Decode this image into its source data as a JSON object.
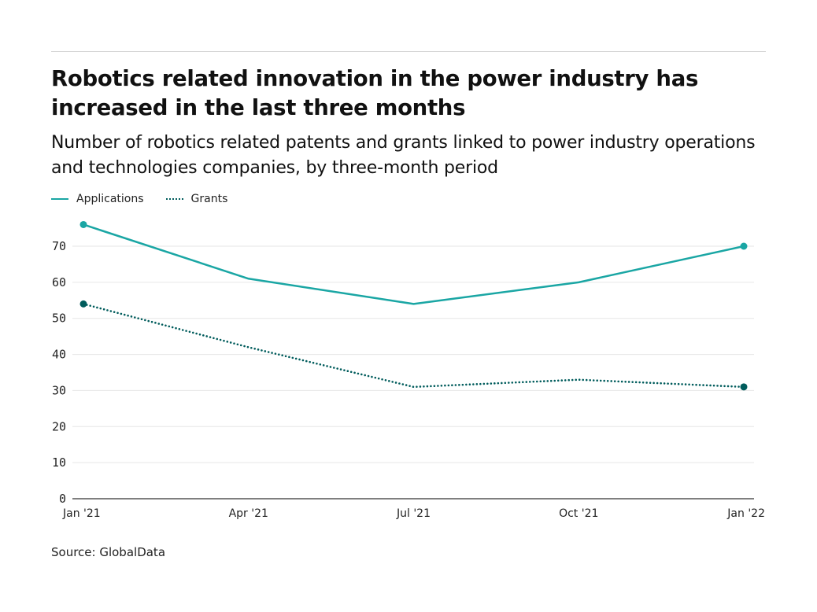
{
  "chart_data": {
    "type": "line",
    "title": "Robotics related innovation in the power industry has increased in the last three months",
    "subtitle": "Number of robotics related patents and grants linked to power industry operations and technologies companies, by three-month period",
    "source": "Source: GlobalData",
    "categories": [
      "Jan '21",
      "Apr '21",
      "Jul '21",
      "Oct '21",
      "Jan '22"
    ],
    "series": [
      {
        "name": "Applications",
        "values": [
          76,
          61,
          54,
          60,
          70
        ],
        "color": "#1aa6a4",
        "style": "solid"
      },
      {
        "name": "Grants",
        "values": [
          54,
          42,
          31,
          33,
          31
        ],
        "color": "#005c5c",
        "style": "dotted"
      }
    ],
    "yticks": [
      0,
      10,
      20,
      30,
      40,
      50,
      60,
      70
    ],
    "ylim": [
      0,
      80
    ],
    "grid": true,
    "legend": "top-left",
    "xlabel": "",
    "ylabel": ""
  }
}
